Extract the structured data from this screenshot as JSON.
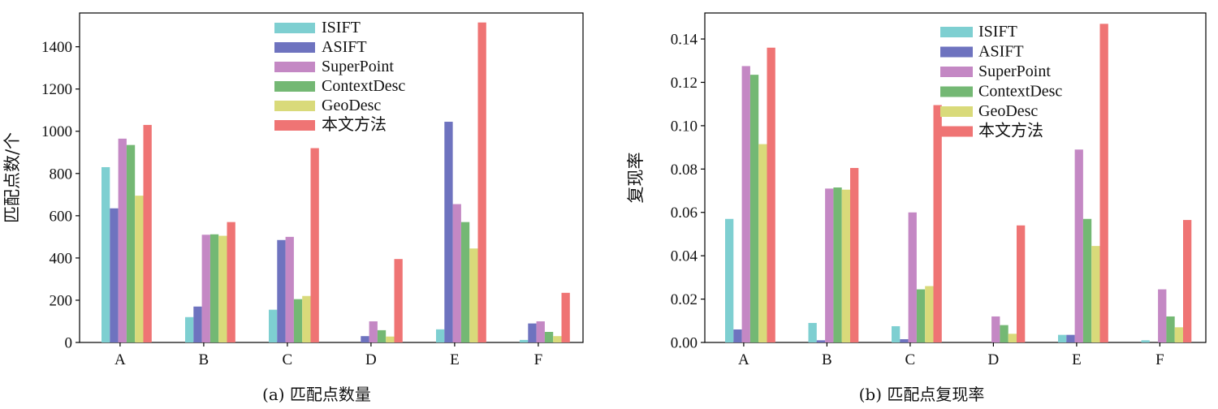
{
  "chart_data": [
    {
      "type": "bar",
      "caption": "(a) 匹配点数量",
      "ylabel": "匹配点数/个",
      "xlabel": "",
      "ylim": [
        0,
        1560
      ],
      "yticks": [
        0,
        200,
        400,
        600,
        800,
        1000,
        1200,
        1400
      ],
      "ytick_labels": [
        "0",
        "200",
        "400",
        "600",
        "800",
        "1000",
        "1200",
        "1400"
      ],
      "categories": [
        "A",
        "B",
        "C",
        "D",
        "E",
        "F"
      ],
      "legend_position": "top-center",
      "series": [
        {
          "name": "ISIFT",
          "color": "#7ecfd1",
          "values": [
            830,
            120,
            155,
            0,
            62,
            12
          ]
        },
        {
          "name": "ASIFT",
          "color": "#6e73bf",
          "values": [
            635,
            170,
            485,
            30,
            1045,
            90
          ]
        },
        {
          "name": "SuperPoint",
          "color": "#c488c4",
          "values": [
            965,
            510,
            500,
            100,
            655,
            100
          ]
        },
        {
          "name": "ContextDesc",
          "color": "#74b874",
          "values": [
            935,
            512,
            205,
            58,
            570,
            50
          ]
        },
        {
          "name": "GeoDesc",
          "color": "#d9da7a",
          "values": [
            695,
            505,
            220,
            28,
            445,
            30
          ]
        },
        {
          "name": "本文方法",
          "color": "#ef7474",
          "values": [
            1030,
            570,
            920,
            395,
            1515,
            235
          ]
        }
      ]
    },
    {
      "type": "bar",
      "caption": "(b) 匹配点复现率",
      "ylabel": "复现率",
      "xlabel": "",
      "ylim": [
        0,
        0.152
      ],
      "yticks": [
        0,
        0.02,
        0.04,
        0.06,
        0.08,
        0.1,
        0.12,
        0.14
      ],
      "ytick_labels": [
        "0.00",
        "0.02",
        "0.04",
        "0.06",
        "0.08",
        "0.10",
        "0.12",
        "0.14"
      ],
      "categories": [
        "A",
        "B",
        "C",
        "D",
        "E",
        "F"
      ],
      "legend_position": "top-right",
      "series": [
        {
          "name": "ISIFT",
          "color": "#7ecfd1",
          "values": [
            0.057,
            0.009,
            0.0075,
            0.0,
            0.0035,
            0.001
          ]
        },
        {
          "name": "ASIFT",
          "color": "#6e73bf",
          "values": [
            0.006,
            0.001,
            0.0015,
            0.0,
            0.0035,
            0.0
          ]
        },
        {
          "name": "SuperPoint",
          "color": "#c488c4",
          "values": [
            0.1275,
            0.071,
            0.06,
            0.012,
            0.089,
            0.0245
          ]
        },
        {
          "name": "ContextDesc",
          "color": "#74b874",
          "values": [
            0.1235,
            0.0715,
            0.0245,
            0.008,
            0.057,
            0.012
          ]
        },
        {
          "name": "GeoDesc",
          "color": "#d9da7a",
          "values": [
            0.0915,
            0.0705,
            0.026,
            0.004,
            0.0445,
            0.007
          ]
        },
        {
          "name": "本文方法",
          "color": "#ef7474",
          "values": [
            0.136,
            0.0805,
            0.1095,
            0.054,
            0.147,
            0.0565
          ]
        }
      ]
    }
  ]
}
